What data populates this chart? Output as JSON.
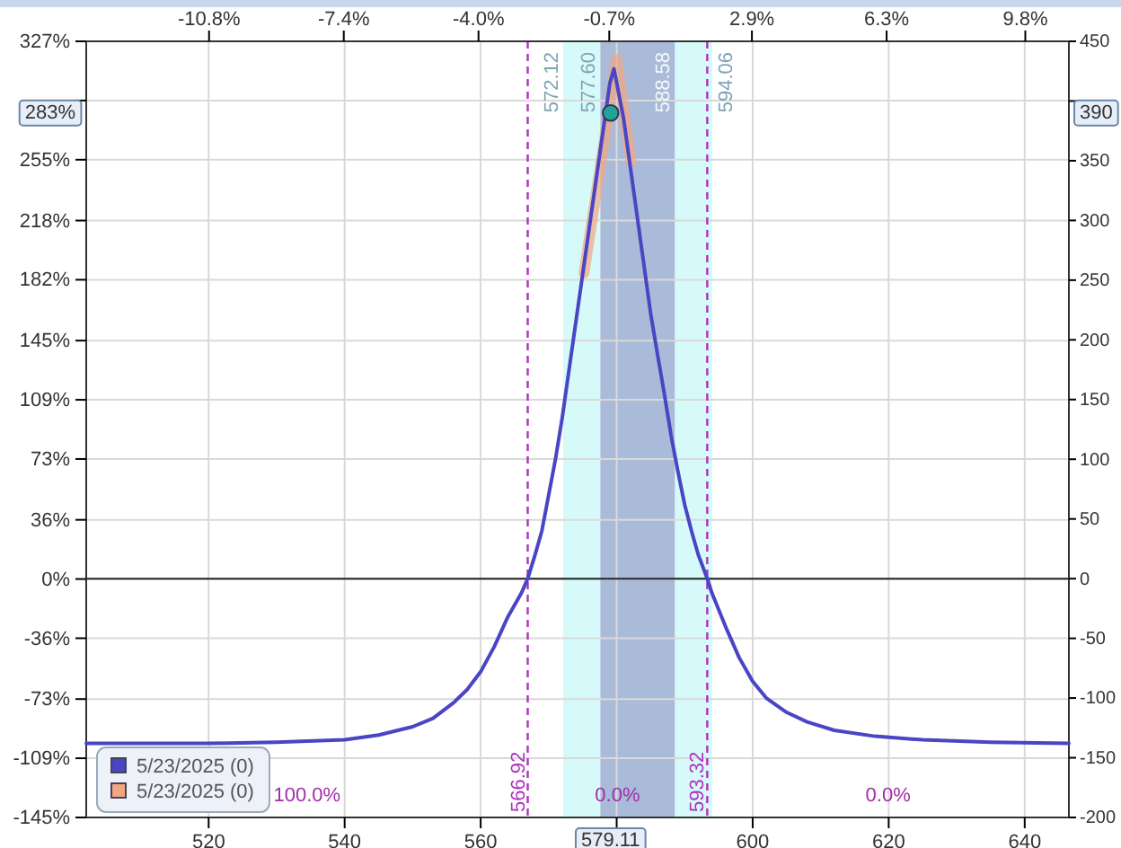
{
  "chart_data": {
    "type": "line",
    "xlim": [
      502,
      646.5
    ],
    "xticks": [
      520,
      540,
      560,
      {
        "value": 580,
        "label": null
      },
      600,
      620,
      640
    ],
    "x2lim": [
      -13.9,
      10.9
    ],
    "x2ticks": [
      {
        "value": -10.8,
        "label": "-10.8%"
      },
      {
        "value": -7.4,
        "label": "-7.4%"
      },
      {
        "value": -4.0,
        "label": "-4.0%"
      },
      {
        "value": -0.7,
        "label": "-0.7%"
      },
      {
        "value": 2.9,
        "label": "2.9%"
      },
      {
        "value": 6.3,
        "label": "6.3%"
      },
      {
        "value": 9.8,
        "label": "9.8%"
      }
    ],
    "ylim": [
      -145,
      327
    ],
    "yticks": [
      {
        "value": 327,
        "label": "327%"
      },
      {
        "value": 291,
        "label": null
      },
      {
        "value": 255,
        "label": "255%"
      },
      {
        "value": 218,
        "label": "218%"
      },
      {
        "value": 182,
        "label": "182%"
      },
      {
        "value": 145,
        "label": "145%"
      },
      {
        "value": 109,
        "label": "109%"
      },
      {
        "value": 73,
        "label": "73%"
      },
      {
        "value": 36,
        "label": "36%"
      },
      {
        "value": 0,
        "label": "0%"
      },
      {
        "value": -36,
        "label": "-36%"
      },
      {
        "value": -73,
        "label": "-73%"
      },
      {
        "value": -109,
        "label": "-109%"
      },
      {
        "value": -145,
        "label": "-145%"
      }
    ],
    "y2lim": [
      -200,
      450
    ],
    "y2ticks": [
      -200,
      -150,
      -100,
      -50,
      0,
      50,
      100,
      150,
      200,
      250,
      300,
      350,
      {
        "value": 400,
        "label": null
      },
      450
    ],
    "grid": true,
    "legend": "bottom left",
    "series": [
      {
        "name": "5/23/2025 (0)",
        "color": "#4a45c4",
        "axis": "y2",
        "x": [
          502,
          520,
          530,
          540,
          545,
          550,
          553,
          556,
          558,
          560,
          562,
          564,
          566,
          566.92,
          568,
          569,
          570,
          571,
          572,
          573,
          574,
          575,
          576,
          577,
          578,
          579,
          579.6,
          581,
          582,
          583,
          584,
          585,
          586,
          587,
          588,
          589,
          590,
          591,
          592,
          593.32,
          594,
          596,
          598,
          600,
          602,
          605,
          608,
          612,
          618,
          625,
          635,
          646.5
        ],
        "values": [
          -138,
          -138,
          -137,
          -135,
          -131,
          -124,
          -117,
          -104,
          -93,
          -78,
          -57,
          -32,
          -12,
          0,
          20,
          40,
          70,
          100,
          135,
          175,
          215,
          255,
          295,
          335,
          375,
          415,
          427,
          386,
          345,
          304,
          263,
          222,
          188,
          155,
          120,
          90,
          62,
          40,
          20,
          0,
          -12,
          -40,
          -66,
          -86,
          -100,
          -112,
          -120,
          -127,
          -132,
          -135,
          -137,
          -138
        ]
      },
      {
        "name": "5/23/2025 (0)",
        "color": "#f4a582",
        "axis": "y2",
        "x": [
          575.2,
          580.0,
          582.1
        ],
        "values": [
          256,
          435,
          349
        ]
      },
      {
        "type": "scatter",
        "marker": "circle",
        "color": "#1fa596",
        "axis": "y2",
        "x": [
          579.11
        ],
        "values": [
          390
        ]
      }
    ],
    "bands": [
      {
        "axis": "x",
        "from": 572.12,
        "to": 577.6,
        "color": "#d6fafa"
      },
      {
        "axis": "x",
        "from": 577.6,
        "to": 588.58,
        "color": "#a9bbd8"
      },
      {
        "axis": "x",
        "from": 588.58,
        "to": 594.06,
        "color": "#d6fafa"
      }
    ],
    "ref_lines": [
      {
        "axis": "x",
        "value": 566.92,
        "label": "566.92",
        "color": "#b030c0",
        "line_style": "dashed"
      },
      {
        "axis": "x",
        "value": 593.32,
        "label": "593.32",
        "color": "#b030c0",
        "line_style": "dashed"
      },
      {
        "axis": "y2",
        "value": 0,
        "color": "#222222",
        "line_style": "solid"
      }
    ],
    "annotations": [
      "579.11",
      "283%",
      "390",
      "100.0%",
      "0.0%",
      "0.0%",
      {
        "text": "572.12",
        "x": 572.12
      },
      {
        "text": "577.60",
        "x": 577.6
      },
      {
        "text": "588.58",
        "x": 588.58
      },
      {
        "text": "594.06",
        "x": 594.06
      }
    ]
  }
}
